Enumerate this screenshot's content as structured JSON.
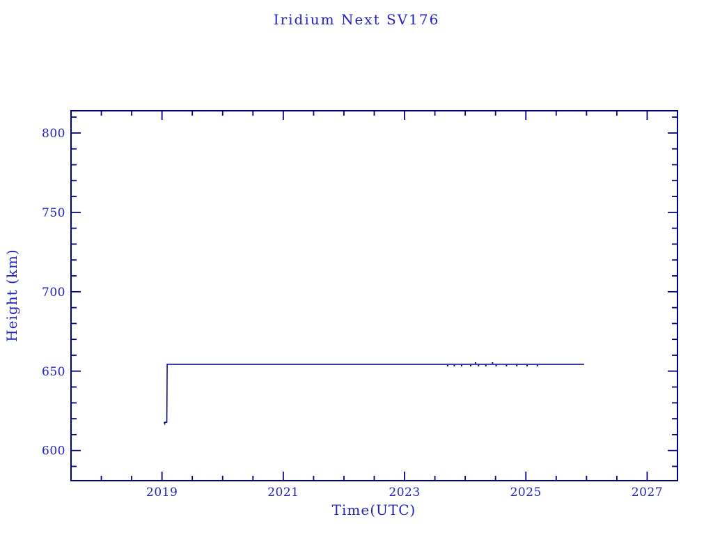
{
  "page": {
    "background": "#ffffff"
  },
  "colors": {
    "text": "#2222c0",
    "axis": "#000078",
    "line": "#000080"
  },
  "chart_data": {
    "type": "line",
    "title": "Iridium Next SV176",
    "xlabel": "Time(UTC)",
    "ylabel": "Height (km)",
    "xlim": [
      2017.5,
      2027.5
    ],
    "ylim": [
      581,
      814
    ],
    "x_major_ticks": [
      2019,
      2021,
      2023,
      2025,
      2027
    ],
    "x_major_tick_labels": [
      "2019",
      "2021",
      "2023",
      "2025",
      "2027"
    ],
    "x_minor_step": 0.5,
    "y_major_ticks": [
      600,
      650,
      700,
      750,
      800
    ],
    "y_major_tick_labels": [
      "600",
      "650",
      "700",
      "750",
      "800"
    ],
    "y_minor_step": 10,
    "grid": false,
    "frame_style": "box-with-mirrored-inward-ticks",
    "legend": "none",
    "series": [
      {
        "name": "orbit-height",
        "color": "#000080",
        "points": [
          [
            2019.034,
            617.8
          ],
          [
            2019.045,
            616.9
          ],
          [
            2019.05,
            617.8
          ],
          [
            2019.08,
            617.8
          ],
          [
            2019.085,
            654.3
          ],
          [
            2025.96,
            654.3
          ]
        ]
      }
    ],
    "maneuver_marks": [
      {
        "x": 2023.71,
        "side": "below"
      },
      {
        "x": 2023.82,
        "side": "below"
      },
      {
        "x": 2023.94,
        "side": "below"
      },
      {
        "x": 2024.09,
        "side": "below"
      },
      {
        "x": 2024.17,
        "side": "above"
      },
      {
        "x": 2024.22,
        "side": "below"
      },
      {
        "x": 2024.34,
        "side": "below"
      },
      {
        "x": 2024.45,
        "side": "above"
      },
      {
        "x": 2024.51,
        "side": "below"
      },
      {
        "x": 2024.68,
        "side": "below"
      },
      {
        "x": 2024.85,
        "side": "below"
      },
      {
        "x": 2025.02,
        "side": "below"
      },
      {
        "x": 2025.19,
        "side": "below"
      }
    ]
  }
}
